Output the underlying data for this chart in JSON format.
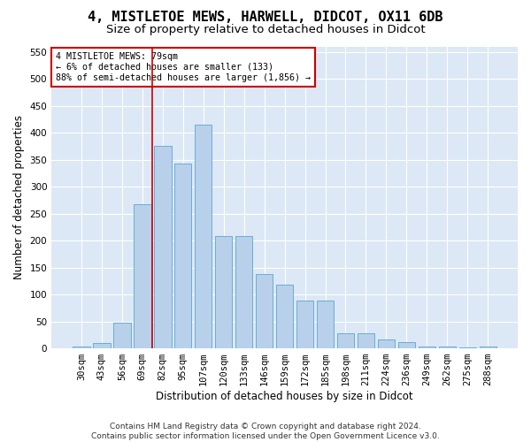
{
  "title": "4, MISTLETOE MEWS, HARWELL, DIDCOT, OX11 6DB",
  "subtitle": "Size of property relative to detached houses in Didcot",
  "xlabel": "Distribution of detached houses by size in Didcot",
  "ylabel": "Number of detached properties",
  "categories": [
    "30sqm",
    "43sqm",
    "56sqm",
    "69sqm",
    "82sqm",
    "95sqm",
    "107sqm",
    "120sqm",
    "133sqm",
    "146sqm",
    "159sqm",
    "172sqm",
    "185sqm",
    "198sqm",
    "211sqm",
    "224sqm",
    "236sqm",
    "249sqm",
    "262sqm",
    "275sqm",
    "288sqm"
  ],
  "values": [
    4,
    10,
    48,
    268,
    375,
    343,
    415,
    208,
    208,
    138,
    118,
    88,
    88,
    28,
    28,
    17,
    11,
    4,
    4,
    2,
    4
  ],
  "bar_color": "#b8d0ea",
  "bar_edge_color": "#6aaed6",
  "vline_x": 3.5,
  "vline_color": "#cc0000",
  "annotation_line1": "4 MISTLETOE MEWS: 79sqm",
  "annotation_line2": "← 6% of detached houses are smaller (133)",
  "annotation_line3": "88% of semi-detached houses are larger (1,856) →",
  "annotation_box_color": "#ffffff",
  "annotation_box_edge": "#cc0000",
  "ylim": [
    0,
    560
  ],
  "yticks": [
    0,
    50,
    100,
    150,
    200,
    250,
    300,
    350,
    400,
    450,
    500,
    550
  ],
  "footer": "Contains HM Land Registry data © Crown copyright and database right 2024.\nContains public sector information licensed under the Open Government Licence v3.0.",
  "bg_color": "#dce8f5",
  "grid_color": "#ffffff",
  "fig_bg_color": "#ffffff",
  "title_fontsize": 11,
  "subtitle_fontsize": 9.5,
  "axis_label_fontsize": 8.5,
  "tick_fontsize": 7.5,
  "footer_fontsize": 6.5
}
